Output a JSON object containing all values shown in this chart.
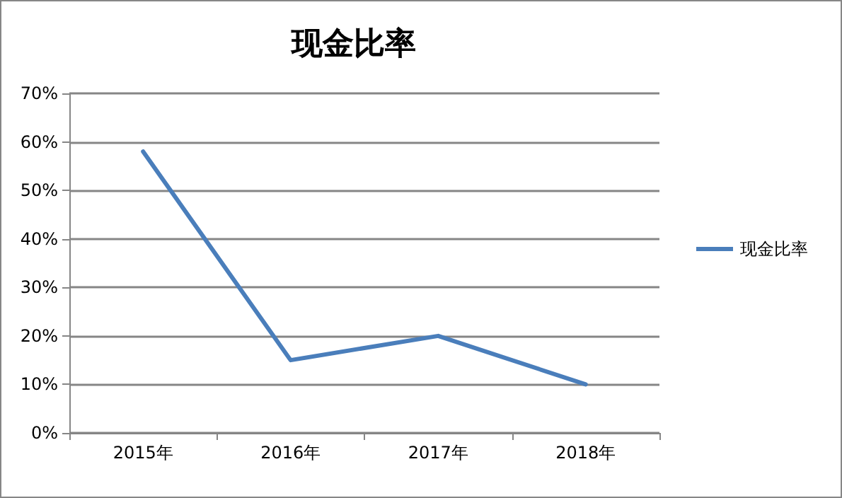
{
  "chart_data": {
    "type": "line",
    "title": "现金比率",
    "categories": [
      "2015年",
      "2016年",
      "2017年",
      "2018年"
    ],
    "series": [
      {
        "name": "现金比率",
        "color": "#4a7ebb",
        "values": [
          58,
          15,
          20,
          10
        ]
      }
    ],
    "ylim": [
      0,
      70
    ],
    "yticks": [
      {
        "value": 0,
        "label": "0%"
      },
      {
        "value": 10,
        "label": "10%"
      },
      {
        "value": 20,
        "label": "20%"
      },
      {
        "value": 30,
        "label": "30%"
      },
      {
        "value": 40,
        "label": "40%"
      },
      {
        "value": 50,
        "label": "50%"
      },
      {
        "value": 60,
        "label": "60%"
      },
      {
        "value": 70,
        "label": "70%"
      }
    ],
    "grid": "y",
    "legend": "right",
    "marker": "none"
  }
}
